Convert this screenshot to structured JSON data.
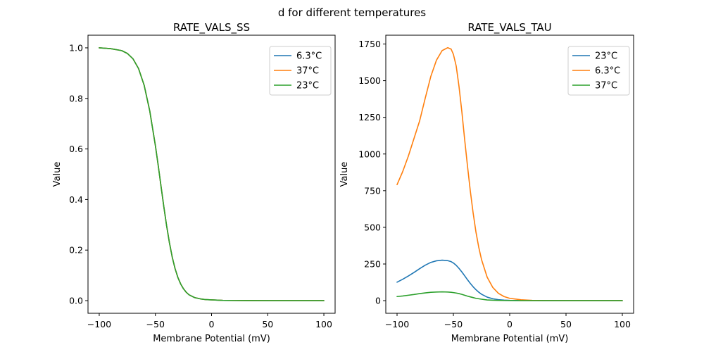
{
  "figure": {
    "title": "d for different temperatures"
  },
  "colors": {
    "blue": "#1f77b4",
    "orange": "#ff7f0e",
    "green": "#2ca02c"
  },
  "chart_data": [
    {
      "type": "line",
      "title": "RATE_VALS_SS",
      "xlabel": "Membrane Potential (mV)",
      "ylabel": "Value",
      "xlim": [
        -110,
        110
      ],
      "ylim": [
        -0.05,
        1.05
      ],
      "xticks": [
        -100,
        -50,
        0,
        50,
        100
      ],
      "xtick_labels": [
        "−100",
        "−50",
        "0",
        "50",
        "100"
      ],
      "yticks": [
        0.0,
        0.2,
        0.4,
        0.6,
        0.8,
        1.0
      ],
      "ytick_labels": [
        "0.0",
        "0.2",
        "0.4",
        "0.6",
        "0.8",
        "1.0"
      ],
      "grid": false,
      "legend": "upper-right",
      "x": [
        -100,
        -90,
        -80,
        -75,
        -70,
        -65,
        -60,
        -55,
        -50,
        -47.5,
        -45,
        -42.5,
        -40,
        -37.5,
        -35,
        -32.5,
        -30,
        -27.5,
        -25,
        -22.5,
        -20,
        -15,
        -10,
        -5,
        0,
        10,
        20,
        30,
        50,
        75,
        100
      ],
      "series": [
        {
          "name": "6.3°C",
          "color": "#1f77b4",
          "values": [
            1.0,
            0.997,
            0.989,
            0.978,
            0.957,
            0.918,
            0.852,
            0.75,
            0.613,
            0.535,
            0.453,
            0.372,
            0.296,
            0.229,
            0.172,
            0.127,
            0.092,
            0.066,
            0.047,
            0.033,
            0.023,
            0.012,
            0.007,
            0.004,
            0.003,
            0.001,
            0.0005,
            0.0002,
            0.0,
            0.0,
            0.0
          ]
        },
        {
          "name": "37°C",
          "color": "#ff7f0e",
          "values": [
            1.0,
            0.997,
            0.989,
            0.978,
            0.957,
            0.918,
            0.852,
            0.75,
            0.613,
            0.535,
            0.453,
            0.372,
            0.296,
            0.229,
            0.172,
            0.127,
            0.092,
            0.066,
            0.047,
            0.033,
            0.023,
            0.012,
            0.007,
            0.004,
            0.003,
            0.001,
            0.0005,
            0.0002,
            0.0,
            0.0,
            0.0
          ]
        },
        {
          "name": "23°C",
          "color": "#2ca02c",
          "values": [
            1.0,
            0.997,
            0.989,
            0.978,
            0.957,
            0.918,
            0.852,
            0.75,
            0.613,
            0.535,
            0.453,
            0.372,
            0.296,
            0.229,
            0.172,
            0.127,
            0.092,
            0.066,
            0.047,
            0.033,
            0.023,
            0.012,
            0.007,
            0.004,
            0.003,
            0.001,
            0.0005,
            0.0002,
            0.0,
            0.0,
            0.0
          ]
        }
      ]
    },
    {
      "type": "line",
      "title": "RATE_VALS_TAU",
      "xlabel": "Membrane Potential (mV)",
      "ylabel": "Value",
      "xlim": [
        -110,
        110
      ],
      "ylim": [
        -86,
        1810
      ],
      "xticks": [
        -100,
        -50,
        0,
        50,
        100
      ],
      "xtick_labels": [
        "−100",
        "−50",
        "0",
        "50",
        "100"
      ],
      "yticks": [
        0,
        250,
        500,
        750,
        1000,
        1250,
        1500,
        1750
      ],
      "ytick_labels": [
        "0",
        "250",
        "500",
        "750",
        "1000",
        "1250",
        "1500",
        "1750"
      ],
      "grid": false,
      "legend": "upper-right",
      "x": [
        -100,
        -95,
        -90,
        -85,
        -80,
        -75,
        -70,
        -65,
        -60,
        -55,
        -52,
        -50,
        -47.5,
        -45,
        -42.5,
        -40,
        -37.5,
        -35,
        -32.5,
        -30,
        -27.5,
        -25,
        -20,
        -15,
        -10,
        -5,
        0,
        10,
        20,
        30,
        50,
        75,
        100
      ],
      "series": [
        {
          "name": "23°C",
          "color": "#1f77b4",
          "values": [
            126,
            146,
            168,
            192,
            218,
            242,
            261,
            272,
            276,
            273,
            266,
            257,
            241,
            220,
            196,
            170,
            143,
            118,
            95,
            75,
            58,
            44,
            24,
            13,
            7,
            4,
            2,
            1,
            0.5,
            0.3,
            0.1,
            0,
            0
          ]
        },
        {
          "name": "6.3°C",
          "color": "#ff7f0e",
          "values": [
            791,
            880,
            985,
            1105,
            1225,
            1380,
            1530,
            1640,
            1705,
            1725,
            1715,
            1680,
            1600,
            1460,
            1290,
            1100,
            920,
            750,
            600,
            470,
            365,
            280,
            160,
            90,
            50,
            28,
            16,
            6,
            2,
            1,
            0.3,
            0,
            0
          ]
        },
        {
          "name": "37°C",
          "color": "#2ca02c",
          "values": [
            28,
            32,
            37,
            42,
            48,
            53,
            57,
            59,
            60,
            59,
            57,
            55,
            52,
            48,
            43,
            37,
            31,
            26,
            21,
            16,
            13,
            10,
            5,
            3,
            2,
            1,
            0.5,
            0.2,
            0.1,
            0,
            0,
            0,
            0
          ]
        }
      ]
    }
  ]
}
